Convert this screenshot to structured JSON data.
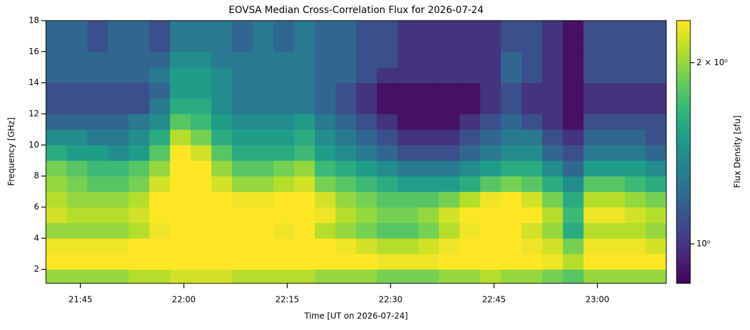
{
  "chart_data": {
    "type": "heatmap",
    "title": "EOVSA Median Cross-Correlation Flux for 2026-07-24",
    "x_label": "Time [UT on 2026-07-24]",
    "y_label": "Frequency [GHz]",
    "colorbar_label": "Flux Density [sfu]",
    "colormap": "viridis",
    "color_scale": "log",
    "clim": [
      0.86,
      2.35
    ],
    "cticks": [
      {
        "value": 1,
        "label": "10⁰"
      },
      {
        "value": 2,
        "label": "2 × 10⁰"
      }
    ],
    "xlim": [
      "21:40",
      "23:10"
    ],
    "xticks": [
      "21:45",
      "22:00",
      "22:15",
      "22:30",
      "22:45",
      "23:00"
    ],
    "ylim": [
      1.1,
      18
    ],
    "yticks": [
      2,
      4,
      6,
      8,
      10,
      12,
      14,
      16,
      18
    ],
    "x_bins": [
      "21:40",
      "21:43",
      "21:46",
      "21:49",
      "21:52",
      "21:55",
      "21:58",
      "22:01",
      "22:04",
      "22:07",
      "22:10",
      "22:13",
      "22:16",
      "22:19",
      "22:22",
      "22:25",
      "22:28",
      "22:31",
      "22:34",
      "22:37",
      "22:40",
      "22:43",
      "22:46",
      "22:49",
      "22:52",
      "22:55",
      "22:58",
      "23:01",
      "23:04",
      "23:07",
      "23:10"
    ],
    "y_bins": [
      1.1,
      2,
      3,
      4,
      5,
      6,
      7,
      8,
      9,
      10,
      11,
      12,
      13,
      14,
      15,
      16,
      17,
      18
    ],
    "z": [
      [
        2.0,
        2.0,
        2.0,
        2.0,
        2.1,
        2.1,
        2.2,
        2.2,
        2.2,
        2.1,
        2.1,
        2.1,
        2.1,
        2.0,
        2.0,
        2.0,
        1.9,
        1.9,
        1.9,
        2.0,
        2.0,
        2.1,
        2.0,
        2.0,
        1.9,
        1.8,
        2.0,
        2.0,
        2.0,
        2.0
      ],
      [
        2.4,
        2.4,
        2.4,
        2.4,
        2.5,
        2.6,
        2.7,
        2.7,
        2.6,
        2.6,
        2.6,
        2.6,
        2.6,
        2.5,
        2.4,
        2.4,
        2.3,
        2.3,
        2.3,
        2.4,
        2.5,
        2.6,
        2.5,
        2.4,
        2.3,
        2.1,
        2.4,
        2.4,
        2.4,
        2.4
      ],
      [
        2.3,
        2.3,
        2.3,
        2.3,
        2.4,
        2.5,
        2.6,
        2.6,
        2.6,
        2.5,
        2.5,
        2.5,
        2.5,
        2.4,
        2.3,
        2.2,
        2.1,
        2.1,
        2.2,
        2.3,
        2.4,
        2.5,
        2.4,
        2.3,
        2.2,
        1.9,
        2.3,
        2.3,
        2.3,
        2.2
      ],
      [
        2.0,
        2.0,
        2.0,
        2.0,
        2.1,
        2.3,
        2.7,
        2.7,
        2.6,
        2.5,
        2.4,
        2.3,
        2.4,
        2.1,
        2.0,
        1.9,
        1.8,
        1.8,
        1.9,
        2.1,
        2.3,
        2.5,
        2.4,
        2.2,
        2.0,
        1.6,
        2.1,
        2.1,
        2.1,
        2.0
      ],
      [
        2.2,
        2.1,
        2.1,
        2.1,
        2.2,
        2.5,
        3.0,
        3.0,
        2.8,
        2.7,
        2.6,
        2.5,
        2.6,
        2.3,
        2.1,
        2.0,
        1.9,
        1.9,
        2.0,
        2.2,
        2.5,
        2.7,
        2.6,
        2.4,
        2.1,
        1.7,
        2.3,
        2.3,
        2.2,
        2.1
      ],
      [
        2.1,
        2.0,
        2.0,
        2.0,
        2.1,
        2.4,
        3.0,
        2.9,
        2.5,
        2.3,
        2.3,
        2.4,
        2.5,
        2.2,
        2.0,
        1.9,
        1.8,
        1.8,
        1.8,
        1.9,
        2.1,
        2.3,
        2.4,
        2.2,
        1.9,
        1.6,
        2.1,
        2.1,
        2.0,
        1.9
      ],
      [
        2.0,
        1.9,
        1.8,
        1.8,
        1.9,
        2.2,
        2.9,
        2.6,
        2.2,
        2.0,
        2.0,
        2.1,
        2.2,
        1.9,
        1.8,
        1.7,
        1.6,
        1.5,
        1.5,
        1.5,
        1.6,
        1.8,
        1.9,
        1.8,
        1.6,
        1.4,
        1.8,
        1.8,
        1.7,
        1.6
      ],
      [
        1.9,
        1.8,
        1.7,
        1.7,
        1.8,
        2.0,
        2.7,
        2.4,
        2.0,
        1.8,
        1.8,
        1.9,
        2.0,
        1.7,
        1.6,
        1.5,
        1.4,
        1.3,
        1.3,
        1.3,
        1.4,
        1.5,
        1.6,
        1.6,
        1.4,
        1.2,
        1.5,
        1.5,
        1.5,
        1.4
      ],
      [
        1.6,
        1.5,
        1.5,
        1.4,
        1.5,
        1.8,
        2.4,
        2.2,
        1.8,
        1.6,
        1.6,
        1.6,
        1.7,
        1.5,
        1.4,
        1.3,
        1.2,
        1.1,
        1.1,
        1.1,
        1.2,
        1.3,
        1.4,
        1.4,
        1.2,
        1.1,
        1.3,
        1.3,
        1.3,
        1.2
      ],
      [
        1.4,
        1.4,
        1.3,
        1.3,
        1.4,
        1.6,
        2.1,
        1.9,
        1.6,
        1.5,
        1.5,
        1.5,
        1.6,
        1.4,
        1.3,
        1.2,
        1.1,
        1.0,
        1.0,
        1.0,
        1.1,
        1.2,
        1.3,
        1.3,
        1.1,
        1.0,
        1.2,
        1.2,
        1.2,
        1.1
      ],
      [
        1.2,
        1.2,
        1.2,
        1.2,
        1.3,
        1.4,
        1.8,
        1.7,
        1.5,
        1.4,
        1.4,
        1.4,
        1.5,
        1.3,
        1.2,
        1.1,
        1.0,
        0.9,
        0.9,
        0.9,
        1.0,
        1.1,
        1.2,
        1.1,
        1.0,
        0.9,
        1.1,
        1.1,
        1.1,
        1.1
      ],
      [
        1.1,
        1.1,
        1.1,
        1.1,
        1.1,
        1.3,
        1.6,
        1.6,
        1.4,
        1.3,
        1.3,
        1.3,
        1.3,
        1.2,
        1.1,
        1.0,
        0.9,
        0.9,
        0.9,
        0.9,
        0.9,
        1.0,
        1.1,
        1.0,
        1.0,
        0.9,
        1.0,
        1.0,
        1.0,
        1.0
      ],
      [
        1.1,
        1.1,
        1.1,
        1.1,
        1.1,
        1.2,
        1.5,
        1.5,
        1.4,
        1.3,
        1.3,
        1.3,
        1.3,
        1.2,
        1.1,
        1.0,
        0.9,
        0.9,
        0.9,
        0.9,
        0.9,
        1.0,
        1.1,
        1.0,
        1.0,
        0.9,
        1.0,
        1.0,
        1.0,
        1.0
      ],
      [
        1.2,
        1.2,
        1.2,
        1.2,
        1.2,
        1.3,
        1.5,
        1.5,
        1.4,
        1.3,
        1.3,
        1.3,
        1.3,
        1.2,
        1.2,
        1.1,
        1.0,
        1.0,
        1.0,
        1.0,
        1.0,
        1.0,
        1.2,
        1.1,
        1.0,
        0.9,
        1.1,
        1.1,
        1.1,
        1.1
      ],
      [
        1.2,
        1.2,
        1.2,
        1.2,
        1.2,
        1.2,
        1.4,
        1.4,
        1.3,
        1.3,
        1.3,
        1.3,
        1.3,
        1.2,
        1.2,
        1.1,
        1.1,
        1.0,
        1.0,
        1.0,
        1.0,
        1.0,
        1.2,
        1.1,
        1.0,
        0.9,
        1.1,
        1.1,
        1.1,
        1.1
      ],
      [
        1.2,
        1.2,
        1.1,
        1.2,
        1.2,
        1.1,
        1.3,
        1.3,
        1.3,
        1.2,
        1.3,
        1.2,
        1.3,
        1.2,
        1.2,
        1.1,
        1.1,
        1.0,
        1.0,
        1.0,
        1.0,
        1.0,
        1.1,
        1.1,
        1.0,
        0.9,
        1.1,
        1.1,
        1.1,
        1.1
      ],
      [
        1.2,
        1.2,
        1.1,
        1.2,
        1.2,
        1.1,
        1.3,
        1.3,
        1.3,
        1.2,
        1.3,
        1.2,
        1.3,
        1.2,
        1.2,
        1.1,
        1.1,
        1.0,
        1.0,
        1.0,
        1.0,
        1.0,
        1.1,
        1.1,
        1.0,
        0.9,
        1.1,
        1.1,
        1.1,
        1.1
      ]
    ]
  }
}
